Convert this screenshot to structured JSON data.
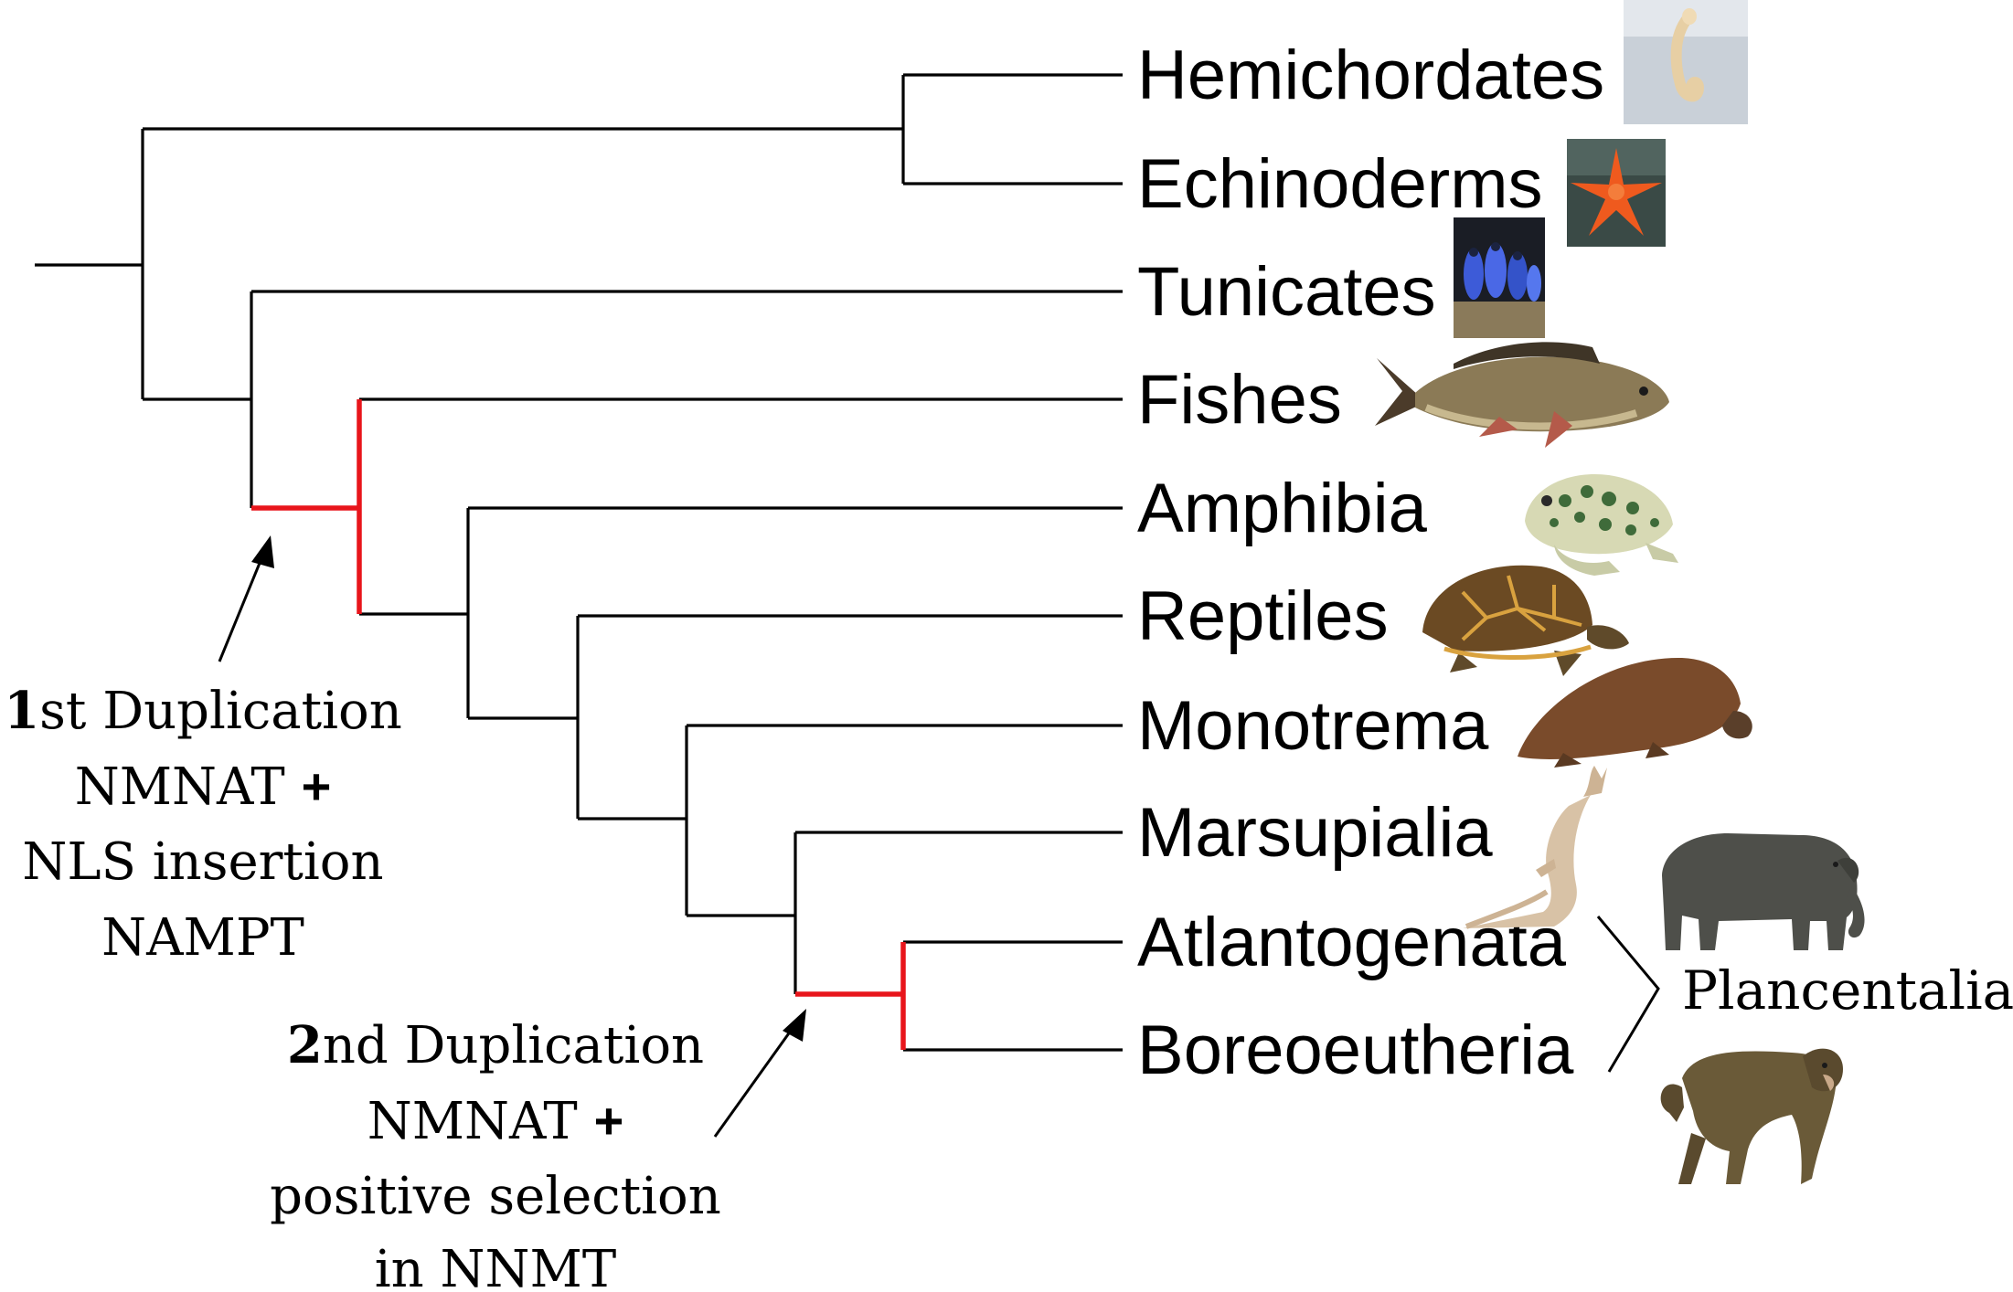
{
  "taxa": [
    "Hemichordates",
    "Echinoderms",
    "Tunicates",
    "Fishes",
    "Amphibia",
    "Reptiles",
    "Monotrema",
    "Marsupialia",
    "Atlantogenata",
    "Boreoeutheria"
  ],
  "clade_label": "Plancentalia",
  "events": {
    "first": {
      "ordinal": "1",
      "suffix": "st Duplication",
      "line2_text": "NMNAT ",
      "line2_plus": "+",
      "line3": "NLS insertion",
      "line4": "NAMPT"
    },
    "second": {
      "ordinal": "2",
      "suffix": "nd Duplication",
      "line2_text": "NMNAT ",
      "line2_plus": "+",
      "line3": "positive selection",
      "line4": "in NNMT"
    }
  },
  "colors": {
    "branch": "#000000",
    "highlight": "#e8151b"
  },
  "icons": {
    "hemichordates": "acorn-worm-photo-icon",
    "echinoderms": "starfish-photo-icon",
    "tunicates": "tunicate-photo-icon",
    "fishes": "carp-icon",
    "amphibia": "frog-icon",
    "reptiles": "box-turtle-icon",
    "monotrema": "platypus-icon",
    "marsupialia": "kangaroo-icon",
    "atlantogenata": "elephant-icon",
    "boreoeutheria": "monkey-icon"
  }
}
